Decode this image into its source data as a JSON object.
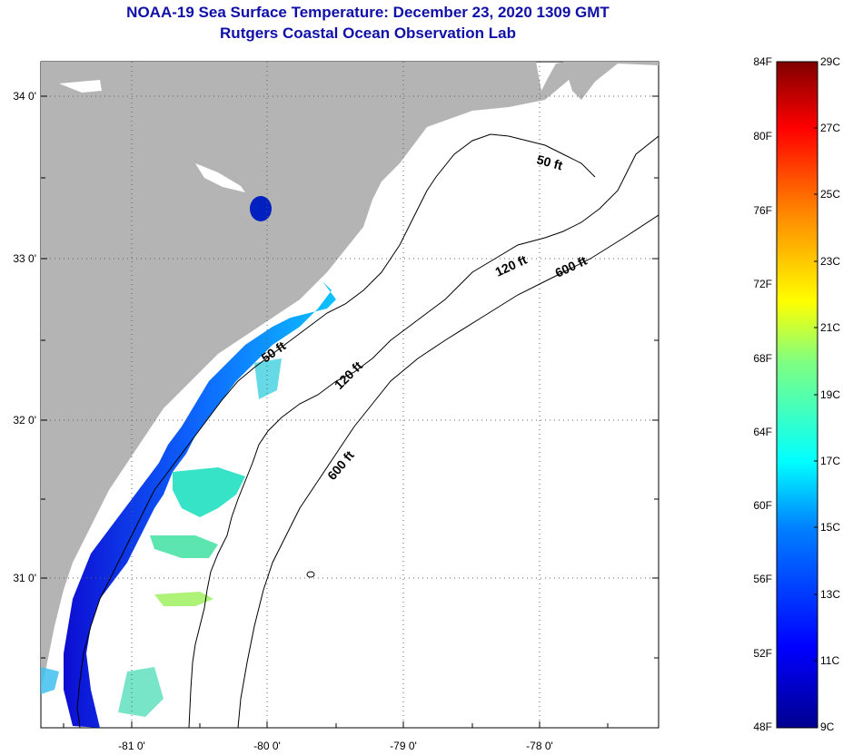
{
  "header": {
    "title": "NOAA-19 Sea Surface Temperature:  December 23, 2020 1309 GMT",
    "subtitle": "Rutgers Coastal Ocean Observation Lab"
  },
  "map": {
    "lat_labels": [
      "34 0'",
      "33 0'",
      "32 0'",
      "31 0'"
    ],
    "lon_labels": [
      "-81 0'",
      "-80 0'",
      "-79 0'",
      "-78 0'"
    ],
    "land_color": "#b4b4b4",
    "ocean_nodata_color": "#ffffff",
    "contours": [
      {
        "label": "50 ft",
        "depth_ft": 50
      },
      {
        "label": "120 ft",
        "depth_ft": 120
      },
      {
        "label": "600 ft",
        "depth_ft": 600
      }
    ],
    "contour_labels": [
      "50 ft",
      "50 ft",
      "120 ft",
      "120 ft",
      "600 ft",
      "600 ft"
    ]
  },
  "colorbar": {
    "fahrenheit_labels": [
      "84F",
      "80F",
      "76F",
      "72F",
      "68F",
      "64F",
      "60F",
      "56F",
      "52F",
      "48F"
    ],
    "celsius_labels": [
      "29C",
      "27C",
      "25C",
      "23C",
      "21C",
      "19C",
      "17C",
      "15C",
      "13C",
      "11C",
      "9C"
    ],
    "colors": [
      "#00008f",
      "#0000ff",
      "#0080ff",
      "#00ffff",
      "#80ff80",
      "#ffff00",
      "#ff8000",
      "#ff0000",
      "#800000"
    ]
  }
}
